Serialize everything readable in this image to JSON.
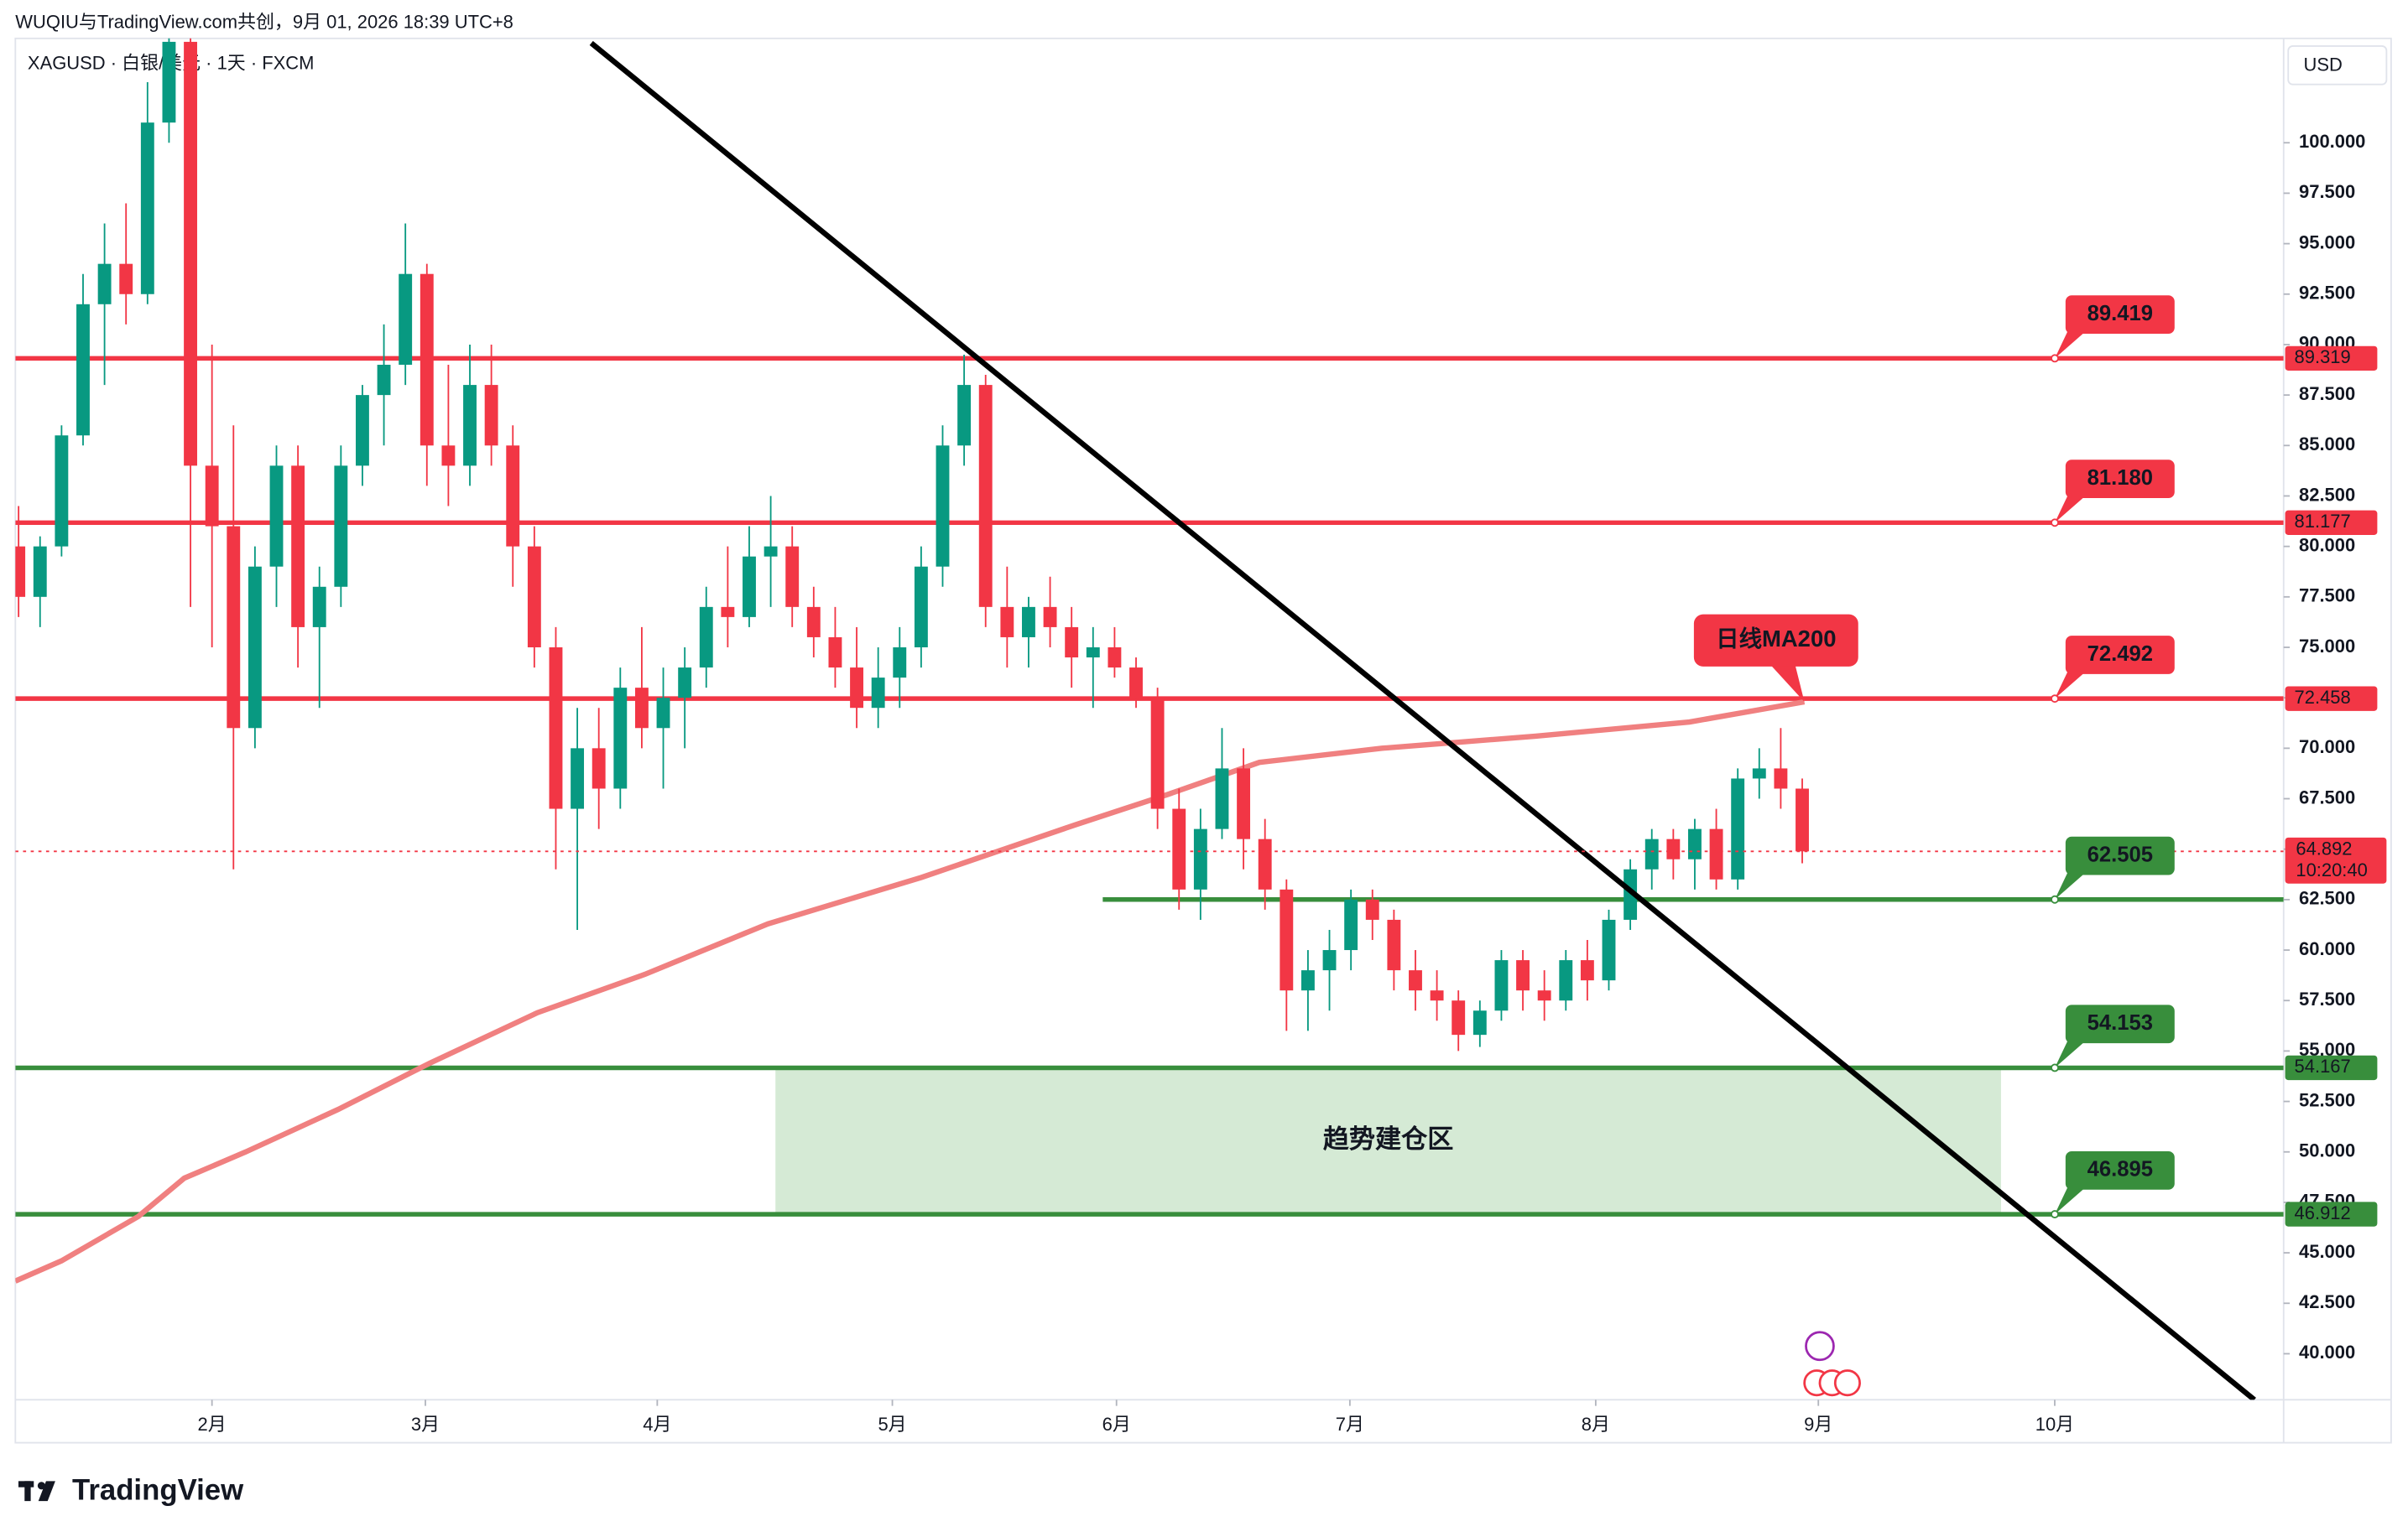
{
  "chart_data": {
    "type": "candlestick",
    "subtitle": "WUQIU与TradingView.com共创，9月 01, 2026 18:39 UTC+8",
    "title": "XAGUSD · 白银/美元 · 1天 · FXCM",
    "currency": "USD",
    "brand": "TradingView",
    "xlim": [
      -0.15,
      105.4
    ],
    "ylim": [
      37.72,
      105.17
    ],
    "xticks": [
      {
        "value": 9.0,
        "label": "2月"
      },
      {
        "value": 18.93,
        "label": "3月"
      },
      {
        "value": 29.72,
        "label": "4月"
      },
      {
        "value": 40.66,
        "label": "5月"
      },
      {
        "value": 51.09,
        "label": "6月"
      },
      {
        "value": 61.95,
        "label": "7月"
      },
      {
        "value": 73.39,
        "label": "8月"
      },
      {
        "value": 83.75,
        "label": "9月"
      },
      {
        "value": 94.75,
        "label": "10月"
      }
    ],
    "yticks": [
      {
        "value": 40,
        "label": "40.000"
      },
      {
        "value": 42.5,
        "label": "42.500"
      },
      {
        "value": 45,
        "label": "45.000"
      },
      {
        "value": 47.5,
        "label": "47.500"
      },
      {
        "value": 50,
        "label": "50.000"
      },
      {
        "value": 52.5,
        "label": "52.500"
      },
      {
        "value": 55,
        "label": "55.000"
      },
      {
        "value": 57.5,
        "label": "57.500"
      },
      {
        "value": 60,
        "label": "60.000"
      },
      {
        "value": 62.5,
        "label": "62.500"
      },
      {
        "value": 65,
        "label": "65.000"
      },
      {
        "value": 67.5,
        "label": "67.500"
      },
      {
        "value": 70,
        "label": "70.000"
      },
      {
        "value": 72.5,
        "label": "72.500"
      },
      {
        "value": 75,
        "label": "75.000"
      },
      {
        "value": 77.5,
        "label": "77.500"
      },
      {
        "value": 80,
        "label": "80.000"
      },
      {
        "value": 82.5,
        "label": "82.500"
      },
      {
        "value": 85,
        "label": "85.000"
      },
      {
        "value": 87.5,
        "label": "87.500"
      },
      {
        "value": 90,
        "label": "90.000"
      },
      {
        "value": 92.5,
        "label": "92.500"
      },
      {
        "value": 95,
        "label": "95.000"
      },
      {
        "value": 97.5,
        "label": "97.500"
      },
      {
        "value": 100,
        "label": "100.000"
      }
    ],
    "up_color": "#089981",
    "down_color": "#f23645",
    "candles": {
      "open": [
        80,
        77.5,
        80,
        85.5,
        92,
        94,
        92.5,
        101,
        105,
        84,
        81,
        71,
        79,
        84,
        76,
        78,
        84,
        87.5,
        89,
        93.5,
        85,
        84,
        88,
        85,
        80,
        75,
        67,
        70,
        68,
        73,
        71,
        72.5,
        74,
        77,
        76.5,
        79.5,
        80,
        77,
        75.5,
        74,
        72,
        73.5,
        75,
        79,
        85,
        88,
        77,
        75.5,
        77,
        76,
        74.5,
        75,
        74,
        72.5,
        67,
        63,
        66,
        69,
        65.5,
        63,
        58,
        59,
        60,
        62.5,
        61.5,
        59,
        58,
        57.5,
        55.8,
        57,
        59.5,
        58,
        57.5,
        59.5,
        58.5,
        61.5,
        64,
        65.5,
        64.5,
        66,
        63.5,
        68.5,
        69,
        68
      ],
      "high": [
        82,
        80.5,
        86,
        93.5,
        96,
        97,
        103,
        106,
        105.5,
        90,
        86,
        80,
        85,
        85,
        79,
        85,
        88,
        91,
        96,
        94,
        89,
        90,
        90,
        86,
        81,
        76,
        72,
        72,
        74,
        76,
        74,
        75,
        78,
        80,
        81,
        82.5,
        81,
        78,
        77,
        76,
        75,
        76,
        80,
        86,
        89.5,
        88.5,
        79,
        77.5,
        78.5,
        77,
        76,
        76,
        74.5,
        73,
        68,
        67,
        71,
        70,
        66.5,
        63.5,
        60,
        61,
        63,
        63,
        62,
        60,
        59,
        58,
        57.5,
        60,
        60,
        59,
        60,
        60.5,
        62,
        64.5,
        66,
        66,
        66.5,
        67,
        69,
        70,
        71,
        68.5
      ],
      "low": [
        76.5,
        76,
        79.5,
        85,
        88,
        91,
        92,
        100,
        77,
        75,
        64,
        70,
        77,
        74,
        72,
        77,
        83,
        85,
        88,
        83,
        82,
        83,
        84,
        78,
        74,
        64,
        61,
        66,
        67,
        70,
        68,
        70,
        73,
        75,
        76,
        77,
        76,
        74.5,
        73,
        71,
        71,
        72,
        74,
        78,
        84,
        76,
        74,
        74,
        75,
        73,
        72,
        73.5,
        72,
        66,
        62,
        61.5,
        65.5,
        64,
        62,
        56,
        56,
        57,
        59,
        60.5,
        58,
        57,
        56.5,
        55,
        55.2,
        56.5,
        57,
        56.5,
        57,
        57.5,
        58,
        61,
        63,
        63.5,
        63,
        63,
        63,
        67.5,
        67,
        64.3
      ],
      "close": [
        77.5,
        80,
        85.5,
        92,
        94,
        92.5,
        101,
        105,
        84,
        81,
        71,
        79,
        84,
        76,
        78,
        84,
        87.5,
        89,
        93.5,
        85,
        84,
        88,
        85,
        80,
        75,
        67,
        70,
        68,
        73,
        71,
        72.5,
        74,
        77,
        76.5,
        79.5,
        80,
        77,
        75.5,
        74,
        72,
        73.5,
        75,
        79,
        85,
        88,
        77,
        75.5,
        77,
        76,
        74.5,
        75,
        74,
        72.5,
        67,
        63,
        66,
        69,
        65.5,
        63,
        58,
        59,
        60,
        62.5,
        61.5,
        59,
        58,
        57.5,
        55.8,
        57,
        59.5,
        58,
        57.5,
        59.5,
        58.5,
        61.5,
        64,
        65.5,
        64.5,
        66,
        63.5,
        68.5,
        69,
        68,
        64.892
      ]
    },
    "ma": {
      "name": "日线MA200",
      "color": "#f08080",
      "x": [
        -0.15,
        1.99,
        5.57,
        7.71,
        10.57,
        14.86,
        19.14,
        24.15,
        29.15,
        34.87,
        42.01,
        49.16,
        53.45,
        57.74,
        63.45,
        70.6,
        77.75,
        83.1
      ],
      "values": [
        43.6,
        44.6,
        46.8,
        48.7,
        50.0,
        52.1,
        54.4,
        56.9,
        58.8,
        61.3,
        63.6,
        66.2,
        67.7,
        69.3,
        70.0,
        70.6,
        71.3,
        72.3
      ]
    },
    "levels": [
      {
        "value": 89.319,
        "callout": 89.419,
        "color": "#f23645"
      },
      {
        "value": 81.177,
        "callout": {
          "value": 81.18,
          "label": "81.180"
        },
        "color": "#f23645"
      },
      {
        "value": 72.458,
        "callout": 72.492,
        "color": "#f23645"
      },
      {
        "value": 62.505,
        "color": "#388e3c",
        "start": 50.45,
        "tag": false
      },
      {
        "value": 54.167,
        "callout": 54.153,
        "color": "#388e3c"
      },
      {
        "value": 46.912,
        "callout": 46.895,
        "color": "#388e3c"
      }
    ],
    "zone": {
      "label": "趋势建仓区",
      "x": [
        35.22,
        92.25
      ],
      "y": [
        46.912,
        54.167
      ],
      "color": "#d5ead5"
    },
    "trendline": {
      "x": [
        26.65,
        104.04
      ],
      "y": [
        104.94,
        37.72
      ],
      "color": "#000000"
    },
    "last": {
      "value": 64.892,
      "countdown": "10:20:40",
      "color": "#f23645"
    }
  }
}
